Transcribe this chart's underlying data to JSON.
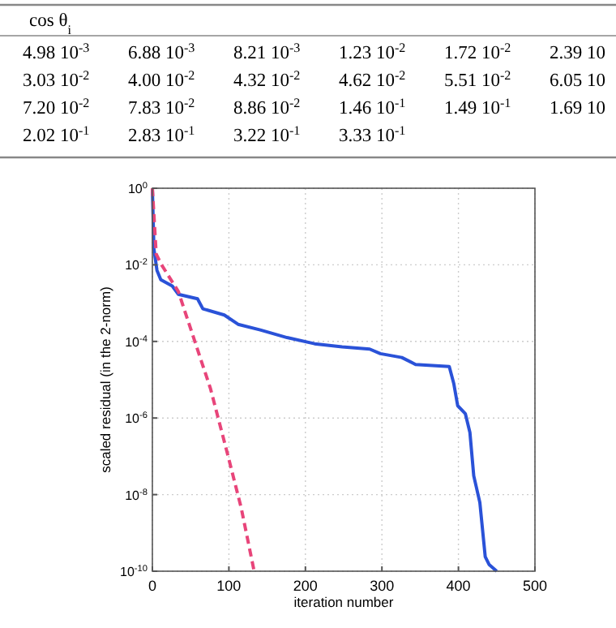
{
  "chart_data": [
    {
      "type": "other",
      "title": "cos θ$_{i}$",
      "annotations": [
        "4.98 10$^{-3}$",
        "6.88 10$^{-3}$",
        "8.21 10$^{-3}$",
        "1.23 10$^{-2}$",
        "1.72 10$^{-2}$",
        "2.39 10",
        "3.03 10$^{-2}$",
        "4.00 10$^{-2}$",
        "4.32 10$^{-2}$",
        "4.62 10$^{-2}$",
        "5.51 10$^{-2}$",
        "6.05 10",
        "7.20 10$^{-2}$",
        "7.83 10$^{-2}$",
        "8.86 10$^{-2}$",
        "1.46 10$^{-1}$",
        "1.49 10$^{-1}$",
        "1.69 10",
        "2.02 10$^{-1}$",
        "2.83 10$^{-1}$",
        "3.22 10$^{-1}$",
        "3.33 10$^{-1}$"
      ]
    },
    {
      "type": "line",
      "xlabel": "iteration number",
      "ylabel": "scaled residual (in the 2-norm)",
      "log": "y",
      "grid": true,
      "marker": "none",
      "xlim": [
        0,
        500
      ],
      "xticks": [
        0,
        100,
        200,
        300,
        400,
        500
      ],
      "ylim": [
        1e-10,
        1
      ],
      "yticks": [
        {
          "value": 1,
          "label": "10$^{0}$"
        },
        {
          "value": 0.01,
          "label": "10$^{-2}$"
        },
        {
          "value": 0.0001,
          "label": "10$^{-4}$"
        },
        {
          "value": 1e-06,
          "label": "10$^{-6}$"
        },
        {
          "value": 1e-08,
          "label": "10$^{-8}$"
        },
        {
          "value": 1e-10,
          "label": "10$^{-10}$"
        }
      ],
      "series": [
        {
          "color": "#2a52d8",
          "line_style": "solid",
          "x": [
            0,
            2,
            6,
            11,
            26,
            34,
            59,
            66,
            94,
            112,
            141,
            176,
            212,
            248,
            284,
            298,
            326,
            344,
            388,
            394,
            399,
            409,
            415,
            420,
            428,
            435,
            440,
            450
          ],
          "values": [
            1,
            0.026,
            0.0072,
            0.0041,
            0.0028,
            0.0017,
            0.0013,
            0.00071,
            0.00049,
            0.00028,
            0.0002,
            0.000126,
            8.7e-05,
            7.2e-05,
            6.3e-05,
            4.8e-05,
            3.8e-05,
            2.5e-05,
            2.2e-05,
            7.8e-06,
            2.1e-06,
            1.3e-06,
            4.2e-07,
            3.1e-08,
            6.2e-09,
            2.4e-10,
            1.5e-10,
            1e-10
          ]
        },
        {
          "color": "#e8457a",
          "line_style": "dashed",
          "x": [
            0,
            5,
            12,
            34,
            55,
            76,
            98,
            116,
            133
          ],
          "values": [
            1,
            0.019,
            0.01,
            0.002,
            0.000107,
            5.8e-06,
            1.2e-07,
            4.6e-09,
            1e-10
          ]
        }
      ]
    }
  ]
}
